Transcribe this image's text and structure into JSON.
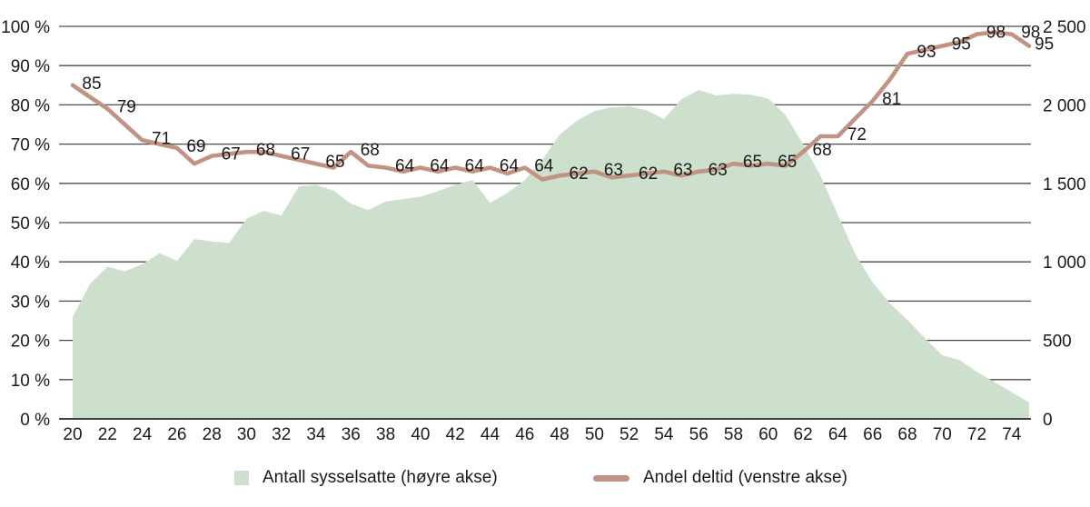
{
  "chart_data": {
    "type": "area+line combo",
    "title": "",
    "x_axis": {
      "label": "",
      "tick_labels": [
        "20",
        "22",
        "24",
        "26",
        "28",
        "30",
        "32",
        "34",
        "36",
        "38",
        "40",
        "42",
        "44",
        "46",
        "48",
        "50",
        "52",
        "54",
        "56",
        "58",
        "60",
        "62",
        "64",
        "66",
        "68",
        "70",
        "72",
        "74"
      ]
    },
    "left_axis": {
      "unit": "percent",
      "min": 0,
      "max": 100,
      "ticks": [
        "0 %",
        "10 %",
        "20 %",
        "30 %",
        "40 %",
        "50 %",
        "60 %",
        "70 %",
        "80 %",
        "90 %",
        "100 %"
      ]
    },
    "right_axis": {
      "min": 0,
      "max": 2500,
      "ticks": [
        "0",
        "500",
        "1 000",
        "1 500",
        "2 000",
        "2 500"
      ]
    },
    "grid": "horizontal-only",
    "colors": {
      "area": "#cce0cd",
      "line": "#c29382",
      "gridline": "#4c4c4c",
      "axis_line": "#3f3f3f",
      "text": "#1a1a1a"
    },
    "series": [
      {
        "name": "Antall sysselsatte (høyre akse)",
        "type": "area",
        "axis": "right",
        "color": "#cce0cd",
        "x": [
          20,
          21,
          22,
          23,
          24,
          25,
          26,
          27,
          28,
          29,
          30,
          31,
          32,
          33,
          34,
          35,
          36,
          37,
          38,
          39,
          40,
          41,
          42,
          43,
          44,
          45,
          46,
          47,
          48,
          49,
          50,
          51,
          52,
          53,
          54,
          55,
          56,
          57,
          58,
          59,
          60,
          61,
          62,
          63,
          64,
          65,
          66,
          67,
          68,
          69,
          70,
          71,
          72,
          73,
          74,
          75
        ],
        "values": [
          650,
          860,
          970,
          940,
          985,
          1055,
          1005,
          1145,
          1130,
          1120,
          1275,
          1325,
          1295,
          1480,
          1490,
          1455,
          1370,
          1330,
          1385,
          1400,
          1415,
          1450,
          1490,
          1520,
          1375,
          1440,
          1520,
          1650,
          1810,
          1900,
          1960,
          1985,
          1990,
          1965,
          1910,
          2035,
          2095,
          2060,
          2070,
          2065,
          2040,
          1935,
          1750,
          1550,
          1300,
          1050,
          870,
          735,
          630,
          515,
          405,
          375,
          300,
          235,
          170,
          105
        ]
      },
      {
        "name": "Andel deltid (venstre akse)",
        "type": "line",
        "axis": "left",
        "color": "#c29382",
        "x": [
          20,
          21,
          22,
          23,
          24,
          25,
          26,
          27,
          28,
          29,
          30,
          31,
          32,
          33,
          34,
          35,
          36,
          37,
          38,
          39,
          40,
          41,
          42,
          43,
          44,
          45,
          46,
          47,
          48,
          49,
          50,
          51,
          52,
          53,
          54,
          55,
          56,
          57,
          58,
          59,
          60,
          61,
          62,
          63,
          64,
          65,
          66,
          67,
          68,
          69,
          70,
          71,
          72,
          73,
          74,
          75
        ],
        "values": [
          85,
          82,
          79,
          75,
          71,
          70,
          69,
          65,
          67,
          67.5,
          68,
          68,
          67,
          66,
          65,
          64,
          68,
          64.5,
          64,
          63,
          64,
          63,
          64,
          63,
          64,
          62.5,
          64,
          61,
          62,
          62.5,
          63,
          61.5,
          62,
          62.5,
          63,
          62,
          63,
          63.5,
          65,
          64.5,
          65,
          64.5,
          68,
          72,
          72,
          76.5,
          81,
          86.5,
          93,
          94,
          95,
          96,
          98,
          98.5,
          98,
          95
        ],
        "data_labels": [
          [
            20,
            "85"
          ],
          [
            22,
            "79"
          ],
          [
            24,
            "71"
          ],
          [
            26,
            "69"
          ],
          [
            28,
            "67"
          ],
          [
            30,
            "68"
          ],
          [
            32,
            "67"
          ],
          [
            34,
            "65"
          ],
          [
            36,
            "68"
          ],
          [
            38,
            "64"
          ],
          [
            40,
            "64"
          ],
          [
            42,
            "64"
          ],
          [
            44,
            "64"
          ],
          [
            46,
            "64"
          ],
          [
            48,
            "62"
          ],
          [
            50,
            "63"
          ],
          [
            52,
            "62"
          ],
          [
            54,
            "63"
          ],
          [
            56,
            "63"
          ],
          [
            58,
            "65"
          ],
          [
            60,
            "65"
          ],
          [
            62,
            "68"
          ],
          [
            64,
            "72"
          ],
          [
            66,
            "81"
          ],
          [
            68,
            "93"
          ],
          [
            70,
            "95"
          ],
          [
            72,
            "98"
          ],
          [
            74,
            "98"
          ],
          [
            75,
            "95"
          ]
        ]
      }
    ],
    "legend": {
      "position": "bottom",
      "items": [
        {
          "label": "Antall sysselsatte (høyre akse)",
          "swatch": "square",
          "color": "#cce0cd"
        },
        {
          "label": "Andel deltid (venstre akse)",
          "swatch": "line",
          "color": "#c29382"
        }
      ]
    }
  }
}
